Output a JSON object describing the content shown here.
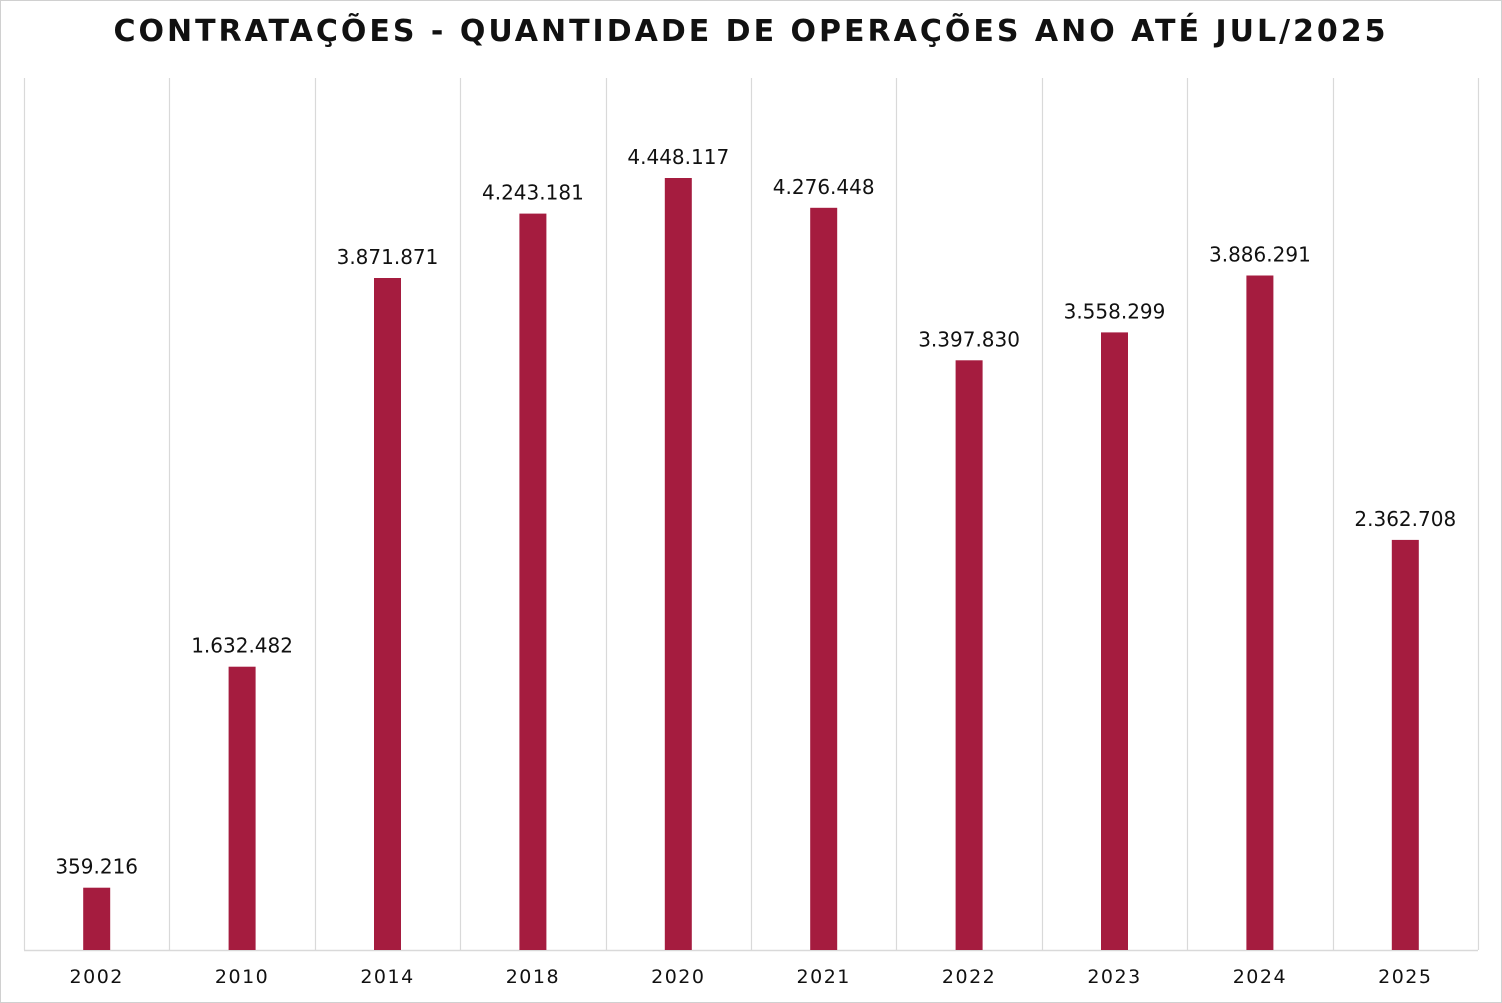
{
  "chart_data": {
    "type": "bar",
    "title": "CONTRATAÇÕES - QUANTIDADE DE OPERAÇÕES ANO ATÉ JUL/2025",
    "xlabel": "",
    "ylabel": "",
    "categories": [
      "2002",
      "2010",
      "2014",
      "2018",
      "2020",
      "2021",
      "2022",
      "2023",
      "2024",
      "2025"
    ],
    "values": [
      359216,
      1632482,
      3871871,
      4243181,
      4448117,
      4276448,
      3397830,
      3558299,
      3886291,
      2362708
    ],
    "data_labels": [
      "359.216",
      "1.632.482",
      "3.871.871",
      "4.243.181",
      "4.448.117",
      "4.276.448",
      "3.397.830",
      "3.558.299",
      "3.886.291",
      "2.362.708"
    ],
    "ylim": [
      0,
      5000000
    ],
    "grid": "vertical category separators",
    "legend": "none",
    "bar_color": "#A51C3F",
    "grid_color": "#d9d9d9"
  }
}
